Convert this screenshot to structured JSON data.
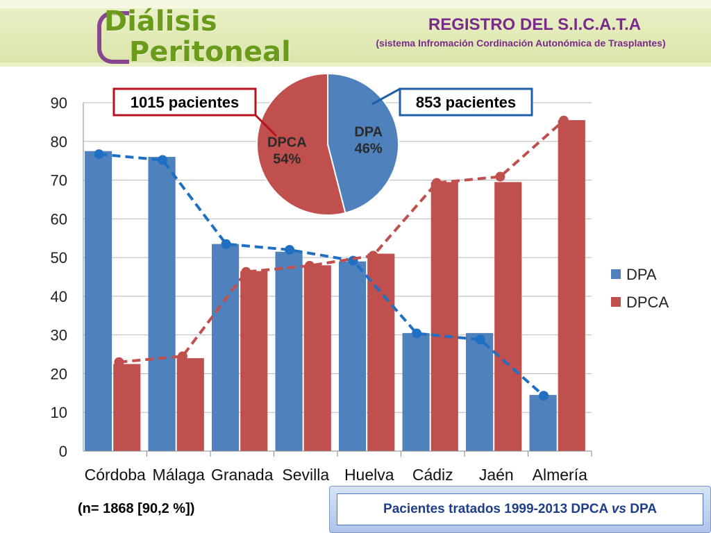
{
  "header": {
    "logo_line1": "Diálisis",
    "logo_line2": "Peritoneal",
    "title": "REGISTRO DEL S.I.C.A.T.A",
    "subtitle": "(sistema Infromación Cordinación Autonómica de Trasplantes)"
  },
  "note": "(n= 1868  [90,2 %])",
  "footer": {
    "prefix": "Pacientes tratados 1999-2013 DPCA ",
    "vs": "vs",
    "suffix": " DPA"
  },
  "colors": {
    "dpa": "#4f81bd",
    "dpca": "#c0504d",
    "dpa_line": "#1f6fc2",
    "dpca_line": "#c0504d",
    "title_purple": "#7a2a8a",
    "logo_green": "#6b9b1a"
  },
  "chart_data": [
    {
      "type": "bar",
      "categories": [
        "Córdoba",
        "Málaga",
        "Granada",
        "Sevilla",
        "Huelva",
        "Cádiz",
        "Jaén",
        "Almería"
      ],
      "series": [
        {
          "name": "DPA",
          "values": [
            77.5,
            76,
            53.5,
            51.5,
            49,
            30.5,
            30.5,
            14.5
          ]
        },
        {
          "name": "DPCA",
          "values": [
            22.5,
            24,
            46.5,
            48,
            51,
            69.5,
            69.5,
            85.5
          ]
        }
      ],
      "trend_lines": [
        {
          "series": "DPA",
          "style": "dashed",
          "values": [
            76.7,
            75.2,
            53.5,
            52,
            49.2,
            30.4,
            28.8,
            14.3
          ]
        },
        {
          "series": "DPCA",
          "style": "dashed",
          "values": [
            23,
            24.5,
            46.3,
            47.9,
            50.5,
            69.3,
            70.9,
            85.4
          ]
        }
      ],
      "ylim": [
        0,
        90
      ],
      "yticks": [
        0,
        10,
        20,
        30,
        40,
        50,
        60,
        70,
        80,
        90
      ],
      "grid": true,
      "legend": {
        "placement": "right",
        "entries": [
          "DPA",
          "DPCA"
        ]
      }
    },
    {
      "type": "pie",
      "slices": [
        {
          "label": "DPA",
          "percent_label": "46%",
          "value": 46,
          "callout": "853 pacientes"
        },
        {
          "label": "DPCA",
          "percent_label": "54%",
          "value": 54,
          "callout": "1015 pacientes"
        }
      ]
    }
  ]
}
